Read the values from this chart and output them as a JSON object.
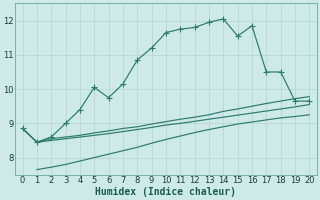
{
  "xlabel": "Humidex (Indice chaleur)",
  "bg_color": "#ceeae6",
  "grid_color": "#b8d8d4",
  "line_color": "#2a7a6e",
  "xlim": [
    -0.5,
    20.5
  ],
  "ylim": [
    7.5,
    12.5
  ],
  "yticks": [
    8,
    9,
    10,
    11,
    12
  ],
  "xticks": [
    0,
    1,
    2,
    3,
    4,
    5,
    6,
    7,
    8,
    9,
    10,
    11,
    12,
    13,
    14,
    15,
    16,
    17,
    18,
    19,
    20
  ],
  "main_x": [
    0,
    1,
    2,
    3,
    4,
    5,
    6,
    7,
    8,
    9,
    10,
    11,
    12,
    13,
    14,
    15,
    16,
    17,
    18,
    19,
    20
  ],
  "main_y": [
    8.85,
    8.45,
    8.6,
    9.0,
    9.4,
    10.05,
    9.75,
    10.15,
    10.85,
    11.2,
    11.65,
    11.75,
    11.8,
    11.95,
    12.05,
    11.55,
    11.85,
    10.5,
    10.5,
    9.65,
    9.65
  ],
  "line2_x": [
    0,
    1,
    2,
    3,
    4,
    5,
    6,
    7,
    8,
    9,
    10,
    11,
    12,
    13,
    14,
    15,
    16,
    17,
    18,
    19,
    20
  ],
  "line2_y": [
    8.85,
    8.45,
    8.55,
    8.6,
    8.65,
    8.72,
    8.78,
    8.85,
    8.9,
    8.98,
    9.05,
    9.12,
    9.18,
    9.25,
    9.35,
    9.42,
    9.5,
    9.58,
    9.65,
    9.72,
    9.78
  ],
  "line3_x": [
    0,
    1,
    2,
    3,
    4,
    5,
    6,
    7,
    8,
    9,
    10,
    11,
    12,
    13,
    14,
    15,
    16,
    17,
    18,
    19,
    20
  ],
  "line3_y": [
    8.85,
    8.45,
    8.5,
    8.55,
    8.6,
    8.65,
    8.7,
    8.76,
    8.82,
    8.88,
    8.95,
    9.0,
    9.06,
    9.12,
    9.18,
    9.24,
    9.3,
    9.36,
    9.42,
    9.48,
    9.55
  ],
  "line4_x": [
    1,
    2,
    3,
    4,
    5,
    6,
    7,
    8,
    9,
    10,
    11,
    12,
    13,
    14,
    15,
    16,
    17,
    18,
    19,
    20
  ],
  "line4_y": [
    7.65,
    7.72,
    7.8,
    7.9,
    8.0,
    8.1,
    8.2,
    8.3,
    8.42,
    8.53,
    8.63,
    8.73,
    8.82,
    8.9,
    8.98,
    9.04,
    9.1,
    9.16,
    9.2,
    9.25
  ],
  "markersize": 2.5,
  "linewidth": 0.85,
  "tick_fontsize": 6,
  "xlabel_fontsize": 7
}
